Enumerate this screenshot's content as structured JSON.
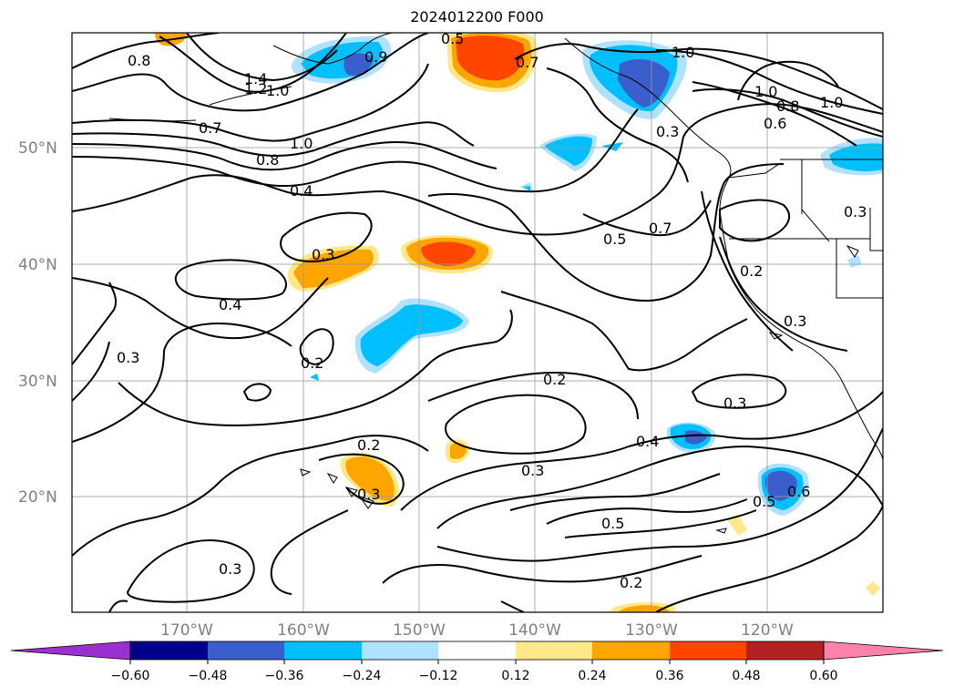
{
  "title": "2024012200 F000",
  "lat_labels": [
    "50°N",
    "40°N",
    "30°N",
    "20°N"
  ],
  "lon_labels": [
    "170°W",
    "160°W",
    "150°W",
    "140°W",
    "130°W",
    "120°W"
  ],
  "contour_labels": [
    "0.8",
    "1.4",
    "1.2",
    "1.0",
    "0.9",
    "0.5",
    "0.7",
    "1.0",
    "1.0",
    "0.8",
    "1.0",
    "0.6",
    "0.7",
    "1.0",
    "0.8",
    "0.4",
    "0.3",
    "0.4",
    "0.7",
    "0.5",
    "0.2",
    "0.3",
    "0.3",
    "0.2",
    "0.2",
    "0.3",
    "0.2",
    "0.3",
    "0.3",
    "0.4",
    "0.5",
    "0.6",
    "0.5",
    "0.3",
    "0.2",
    "0.3",
    "0.3"
  ],
  "colorbar": {
    "ticks": [
      "−0.60",
      "−0.48",
      "−0.36",
      "−0.24",
      "−0.12",
      "0.12",
      "0.24",
      "0.36",
      "0.48",
      "0.60"
    ],
    "colors": [
      "#9b30d0",
      "#00008b",
      "#3a5fcd",
      "#00bfff",
      "#b0e2ff",
      "#ffffff",
      "#ffe88a",
      "#ffa500",
      "#ff4500",
      "#b22222",
      "#ff82ab"
    ]
  },
  "colors": {
    "light_blue": "#b0e2ff",
    "cyan": "#00bfff",
    "royal_blue": "#3a5fcd",
    "yellow": "#ffe88a",
    "orange": "#ffa500",
    "red_orange": "#ff4500"
  }
}
